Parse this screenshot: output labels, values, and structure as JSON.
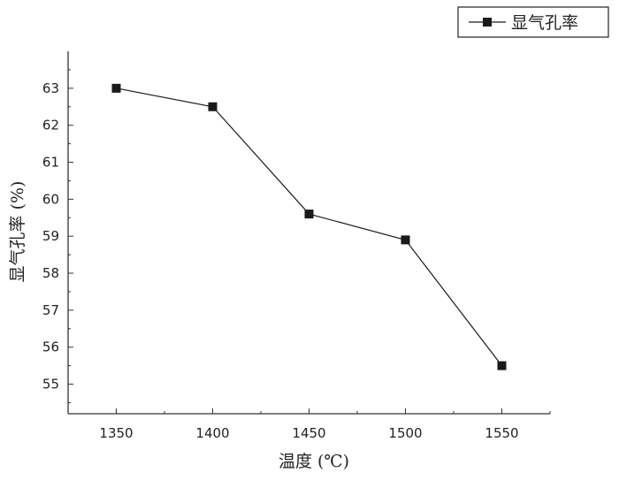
{
  "chart_data": {
    "type": "line",
    "x": [
      1350,
      1400,
      1450,
      1500,
      1550
    ],
    "series": [
      {
        "name": "显气孔率",
        "values": [
          63.0,
          62.5,
          59.6,
          58.9,
          55.5
        ]
      }
    ],
    "xlabel": "温度 (℃)",
    "ylabel": "显气孔率 (%)",
    "xticks": [
      "1350",
      "1400",
      "1450",
      "1500",
      "1550"
    ],
    "yticks": [
      "55",
      "56",
      "57",
      "58",
      "59",
      "60",
      "61",
      "62",
      "63"
    ],
    "xlim": [
      1325,
      1575
    ],
    "ylim": [
      54.2,
      64.0
    ],
    "legend": "top-right",
    "grid": false,
    "colors": {
      "line": "#1a1a1a",
      "marker": "#1a1a1a",
      "axis": "#333333"
    }
  }
}
